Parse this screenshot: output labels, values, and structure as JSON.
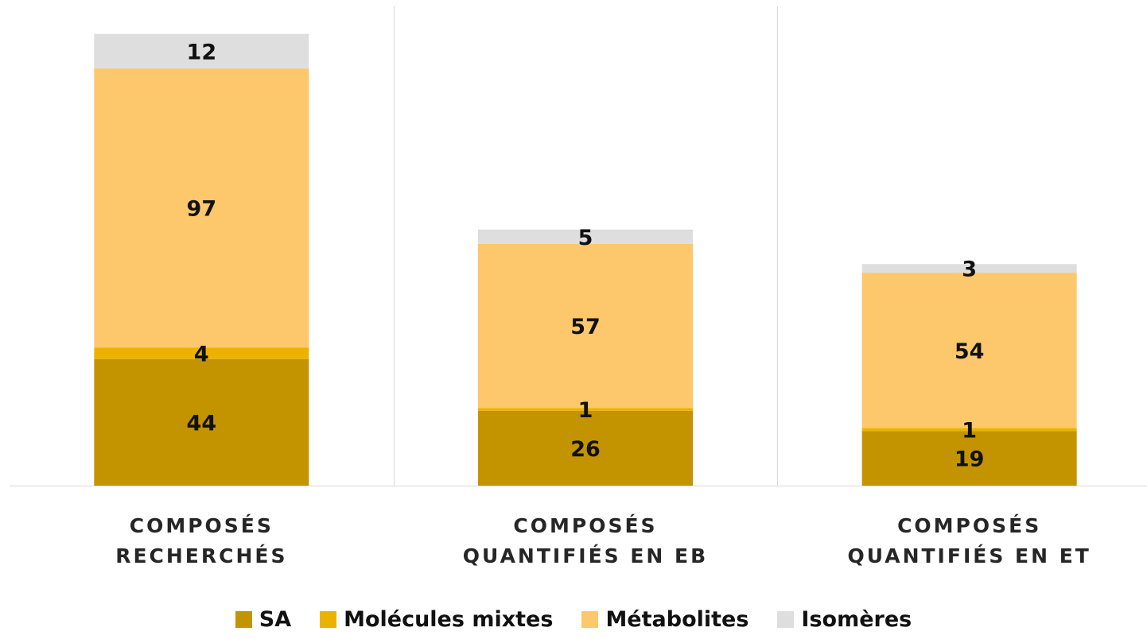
{
  "chart_data": {
    "type": "bar",
    "stacked": true,
    "categories": [
      [
        "COMPOSÉS",
        "RECHERCHÉS"
      ],
      [
        "COMPOSÉS",
        "QUANTIFIÉS EN EB"
      ],
      [
        "COMPOSÉS",
        "QUANTIFIÉS EN ET"
      ]
    ],
    "series": [
      {
        "name": "SA",
        "color": "#C49300",
        "values": [
          44,
          26,
          19
        ]
      },
      {
        "name": "Molécules mixtes",
        "color": "#EBB300",
        "values": [
          4,
          1,
          1
        ]
      },
      {
        "name": "Métabolites",
        "color": "#FDC76C",
        "values": [
          97,
          57,
          54
        ]
      },
      {
        "name": "Isomères",
        "color": "#DEDEDE",
        "values": [
          12,
          5,
          3
        ]
      }
    ],
    "ylim": [
      0,
      173
    ],
    "y_axis_visible": false,
    "grid": false,
    "category_separators": true,
    "data_labels": true,
    "legend_position": "bottom"
  }
}
